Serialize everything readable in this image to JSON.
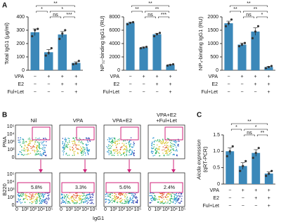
{
  "panel_labels": [
    "A",
    "B",
    "C"
  ],
  "chart_data": [
    {
      "type": "bar",
      "ylabel": [
        "Total IgG1 (μg/ml)"
      ],
      "color": "#3b88b9",
      "point_color": "#333333",
      "values": [
        285,
        135,
        268,
        55
      ],
      "errors": [
        25,
        20,
        22,
        8
      ],
      "points": [
        [
          255,
          300,
          310
        ],
        [
          110,
          130,
          165
        ],
        [
          235,
          275,
          300
        ],
        [
          45,
          50,
          70
        ]
      ],
      "ylim": [
        0,
        400
      ],
      "yticks": [
        0,
        100,
        200,
        300,
        400
      ],
      "annotations": [
        "**",
        "*",
        "*",
        "ns",
        "***"
      ],
      "treatments": [
        {
          "name": "VPA",
          "signs": [
            "−",
            "+",
            "+",
            "+"
          ]
        },
        {
          "name": "E2",
          "signs": [
            "−",
            "−",
            "+",
            "+"
          ]
        },
        {
          "name": "Ful+Let",
          "signs": [
            "−",
            "−",
            "−",
            "+"
          ]
        }
      ]
    },
    {
      "type": "bar",
      "ylabel": [
        "NP₃₂-binding IgG1 (RU)"
      ],
      "color": "#3b88b9",
      "point_color": "#333333",
      "values": [
        7100,
        3400,
        5400,
        800
      ],
      "errors": [
        100,
        80,
        150,
        60
      ],
      "points": [
        [
          6900,
          7100,
          7200
        ],
        [
          3300,
          3400,
          3500
        ],
        [
          5100,
          5400,
          5600
        ],
        [
          700,
          800,
          900
        ]
      ],
      "ylim": [
        0,
        8000
      ],
      "yticks": [
        0,
        2000,
        4000,
        6000,
        8000
      ],
      "annotations": [
        "**",
        "**",
        "**",
        "ns",
        "***"
      ],
      "treatments": [
        {
          "name": "VPA",
          "signs": [
            "−",
            "+",
            "+",
            "+"
          ]
        },
        {
          "name": "E2",
          "signs": [
            "−",
            "−",
            "+",
            "+"
          ]
        },
        {
          "name": "Ful+Let",
          "signs": [
            "−",
            "−",
            "−",
            "+"
          ]
        }
      ]
    },
    {
      "type": "bar",
      "ylabel": [
        "NP₄-binding IgG1 (RU)"
      ],
      "color": "#3b88b9",
      "point_color": "#333333",
      "values": [
        1760,
        960,
        1450,
        120
      ],
      "errors": [
        80,
        60,
        140,
        30
      ],
      "points": [
        [
          1650,
          1760,
          1900
        ],
        [
          900,
          960,
          1020
        ],
        [
          1200,
          1450,
          1650
        ],
        [
          80,
          120,
          160
        ]
      ],
      "ylim": [
        0,
        2000
      ],
      "yticks": [
        0,
        500,
        1000,
        1500,
        2000
      ],
      "annotations": [
        "**",
        "**",
        "**",
        "ns",
        "*"
      ],
      "treatments": [
        {
          "name": "VPA",
          "signs": [
            "−",
            "+",
            "+",
            "+"
          ]
        },
        {
          "name": "E2",
          "signs": [
            "−",
            "−",
            "+",
            "+"
          ]
        },
        {
          "name": "Ful+Let",
          "signs": [
            "−",
            "−",
            "−",
            "+"
          ]
        }
      ]
    },
    {
      "type": "bar",
      "ylabel": [
        "Aicda expression",
        "(qRT-PCR)"
      ],
      "color": "#3b88b9",
      "point_color": "#333333",
      "values": [
        1.0,
        0.55,
        0.95,
        0.32
      ],
      "errors": [
        0.1,
        0.1,
        0.1,
        0.05
      ],
      "points": [
        [
          0.85,
          1.0,
          1.15
        ],
        [
          0.4,
          0.55,
          0.7
        ],
        [
          0.8,
          0.95,
          1.1
        ],
        [
          0.25,
          0.32,
          0.4
        ]
      ],
      "ylim": [
        0,
        1.5
      ],
      "yticks": [
        0,
        0.5,
        {
          "value": 1,
          "label": "1.0"
        },
        1.5
      ],
      "annotations": [
        "**",
        "*",
        "*",
        "ns",
        "**"
      ],
      "treatments": [
        {
          "name": "VPA",
          "signs": [
            "−",
            "+",
            "+",
            "+"
          ]
        },
        {
          "name": "E2",
          "signs": [
            "−",
            "−",
            "+",
            "+"
          ]
        },
        {
          "name": "Ful+Let",
          "signs": [
            "−",
            "−",
            "−",
            "+"
          ]
        }
      ]
    }
  ],
  "flow": {
    "plots": [
      {
        "title": [
          "Nil"
        ],
        "percent": "5.8%"
      },
      {
        "title": [
          "VPA"
        ],
        "percent": "3.3%"
      },
      {
        "title": [
          "VPA+E2"
        ],
        "percent": "5.6%"
      },
      {
        "title": [
          "VPA+E2",
          "+Ful+Let"
        ],
        "percent": "2.4%"
      }
    ],
    "top_ylabel": "PNA",
    "bottom_ylabel": "B220",
    "xlabel": "IgG1",
    "ticks": [
      "0",
      "10²",
      "10³",
      "10⁴",
      "10⁵"
    ]
  }
}
